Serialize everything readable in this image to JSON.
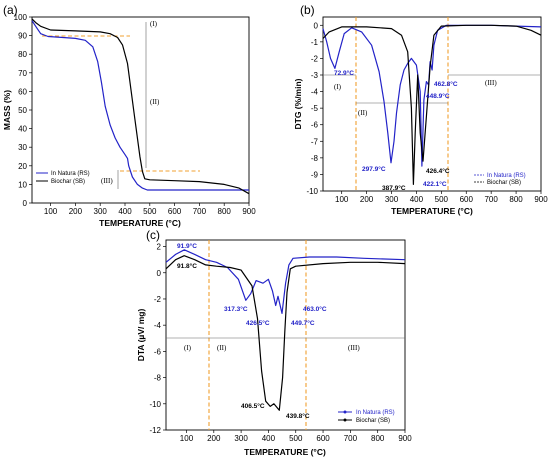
{
  "chart_data": [
    {
      "panel": "(a)",
      "type": "line",
      "xlabel": "TEMPERATURE (°C)",
      "ylabel": "MASS (%)",
      "xlim": [
        25,
        900
      ],
      "ylim": [
        0,
        100
      ],
      "xticks": [
        "100",
        "200",
        "300",
        "400",
        "500",
        "600",
        "700",
        "800",
        "900"
      ],
      "yticks": [
        "0",
        "10",
        "20",
        "30",
        "40",
        "50",
        "60",
        "70",
        "80",
        "90",
        "100"
      ],
      "legend": "bottom-left",
      "series": [
        {
          "name": "In Natura (RS)",
          "color": "#2323c8",
          "points": [
            [
              25,
              98
            ],
            [
              40,
              95
            ],
            [
              60,
              91
            ],
            [
              90,
              89.5
            ],
            [
              150,
              89
            ],
            [
              200,
              88.5
            ],
            [
              240,
              87.5
            ],
            [
              270,
              84
            ],
            [
              290,
              76
            ],
            [
              305,
              65
            ],
            [
              320,
              52
            ],
            [
              340,
              42
            ],
            [
              360,
              35
            ],
            [
              380,
              30
            ],
            [
              400,
              26
            ],
            [
              410,
              24
            ],
            [
              415,
              20
            ],
            [
              430,
              14
            ],
            [
              450,
              10
            ],
            [
              470,
              8
            ],
            [
              490,
              7
            ],
            [
              550,
              7
            ],
            [
              650,
              7
            ],
            [
              750,
              7
            ],
            [
              900,
              7
            ]
          ]
        },
        {
          "name": "Biochar (SB)",
          "color": "#000000",
          "points": [
            [
              25,
              99
            ],
            [
              40,
              97
            ],
            [
              60,
              95
            ],
            [
              100,
              93
            ],
            [
              200,
              92.5
            ],
            [
              300,
              92
            ],
            [
              340,
              91
            ],
            [
              370,
              89
            ],
            [
              390,
              85
            ],
            [
              410,
              75
            ],
            [
              425,
              60
            ],
            [
              440,
              45
            ],
            [
              450,
              35
            ],
            [
              460,
              25
            ],
            [
              470,
              17
            ],
            [
              480,
              13
            ],
            [
              500,
              12.5
            ],
            [
              600,
              12
            ],
            [
              700,
              11.5
            ],
            [
              800,
              10
            ],
            [
              860,
              8
            ],
            [
              900,
              5
            ]
          ]
        }
      ],
      "zones": [
        "(I)",
        "(II)",
        "(III)"
      ]
    },
    {
      "panel": "(b)",
      "type": "line",
      "xlabel": "TEMPERATURE (°C)",
      "ylabel": "DTG (%/min)",
      "xlim": [
        25,
        900
      ],
      "ylim": [
        -10,
        0.5
      ],
      "xticks": [
        "100",
        "200",
        "300",
        "400",
        "500",
        "600",
        "700",
        "800",
        "900"
      ],
      "yticks": [
        "-10",
        "-9",
        "-8",
        "-7",
        "-6",
        "-5",
        "-4",
        "-3",
        "-2",
        "-1",
        "0"
      ],
      "legend": "bottom-right",
      "series": [
        {
          "name": "In Natura (RS)",
          "color": "#2323c8",
          "points": [
            [
              25,
              -0.2
            ],
            [
              40,
              -1.0
            ],
            [
              55,
              -2.0
            ],
            [
              72.9,
              -2.6
            ],
            [
              90,
              -1.6
            ],
            [
              110,
              -0.5
            ],
            [
              140,
              -0.15
            ],
            [
              180,
              -0.4
            ],
            [
              220,
              -1.2
            ],
            [
              250,
              -2.8
            ],
            [
              270,
              -4.6
            ],
            [
              285,
              -6.5
            ],
            [
              297.9,
              -8.3
            ],
            [
              310,
              -7.0
            ],
            [
              320,
              -5.3
            ],
            [
              335,
              -3.6
            ],
            [
              350,
              -2.7
            ],
            [
              365,
              -2.3
            ],
            [
              380,
              -2.0
            ],
            [
              400,
              -2.4
            ],
            [
              415,
              -4.0
            ],
            [
              422.1,
              -8.5
            ],
            [
              430,
              -4.5
            ],
            [
              440,
              -3.4
            ],
            [
              448.9,
              -3.6
            ],
            [
              455,
              -2.2
            ],
            [
              462.8,
              -2.7
            ],
            [
              470,
              -1.2
            ],
            [
              485,
              -0.3
            ],
            [
              520,
              0.0
            ],
            [
              700,
              0.0
            ],
            [
              900,
              -0.1
            ]
          ]
        },
        {
          "name": "Biochar (SB)",
          "color": "#000000",
          "points": [
            [
              25,
              -0.8
            ],
            [
              50,
              -0.4
            ],
            [
              100,
              -0.1
            ],
            [
              200,
              -0.1
            ],
            [
              300,
              -0.2
            ],
            [
              340,
              -0.6
            ],
            [
              365,
              -1.6
            ],
            [
              380,
              -5.0
            ],
            [
              387.9,
              -9.6
            ],
            [
              395,
              -6.5
            ],
            [
              405,
              -3.0
            ],
            [
              415,
              -6.5
            ],
            [
              426.4,
              -8.2
            ],
            [
              440,
              -5.5
            ],
            [
              455,
              -2.5
            ],
            [
              470,
              -0.6
            ],
            [
              500,
              -0.05
            ],
            [
              600,
              0.0
            ],
            [
              700,
              0.0
            ],
            [
              800,
              -0.05
            ],
            [
              860,
              -0.3
            ],
            [
              900,
              -0.6
            ]
          ]
        }
      ],
      "annotations": [
        "72.9°C",
        "297.9°C",
        "387.9°C",
        "422.1°C",
        "426.4°C",
        "448.9°C",
        "462.8°C"
      ],
      "zones": [
        "(I)",
        "(II)",
        "(III)"
      ]
    },
    {
      "panel": "(c)",
      "type": "line",
      "xlabel": "TEMPERATURE (°C)",
      "ylabel": "DTA (µV/ mg)",
      "xlim": [
        25,
        900
      ],
      "ylim": [
        -12,
        2.5
      ],
      "xticks": [
        "100",
        "200",
        "300",
        "400",
        "500",
        "600",
        "700",
        "800",
        "900"
      ],
      "yticks": [
        "-12",
        "-10",
        "-8",
        "-6",
        "-4",
        "-2",
        "0",
        "2"
      ],
      "legend": "bottom-right",
      "series": [
        {
          "name": "In Natura (RS)",
          "color": "#2323c8",
          "points": [
            [
              25,
              0.8
            ],
            [
              60,
              1.4
            ],
            [
              91.9,
              1.75
            ],
            [
              130,
              1.4
            ],
            [
              170,
              1.0
            ],
            [
              210,
              0.8
            ],
            [
              250,
              0.4
            ],
            [
              290,
              -0.5
            ],
            [
              317.3,
              -2.1
            ],
            [
              335,
              -1.6
            ],
            [
              355,
              -0.6
            ],
            [
              380,
              -0.8
            ],
            [
              400,
              -0.5
            ],
            [
              415,
              -1.4
            ],
            [
              426.5,
              -2.5
            ],
            [
              435,
              -1.8
            ],
            [
              449.7,
              -3.1
            ],
            [
              463,
              -0.8
            ],
            [
              475,
              0.6
            ],
            [
              490,
              1.1
            ],
            [
              550,
              1.2
            ],
            [
              650,
              1.2
            ],
            [
              750,
              1.1
            ],
            [
              900,
              1.0
            ]
          ]
        },
        {
          "name": "Biochar (SB)",
          "color": "#000000",
          "points": [
            [
              25,
              0.3
            ],
            [
              60,
              1.0
            ],
            [
              91.8,
              1.3
            ],
            [
              130,
              1.0
            ],
            [
              170,
              0.6
            ],
            [
              210,
              0.5
            ],
            [
              260,
              0.4
            ],
            [
              300,
              0.2
            ],
            [
              340,
              -1.0
            ],
            [
              360,
              -3.5
            ],
            [
              375,
              -7.5
            ],
            [
              390,
              -9.8
            ],
            [
              406.5,
              -10.2
            ],
            [
              420,
              -10.0
            ],
            [
              439.8,
              -10.5
            ],
            [
              452,
              -8.0
            ],
            [
              460,
              -4.5
            ],
            [
              468,
              -1.5
            ],
            [
              480,
              0.3
            ],
            [
              500,
              0.5
            ],
            [
              600,
              0.7
            ],
            [
              700,
              0.8
            ],
            [
              800,
              0.8
            ],
            [
              900,
              0.7
            ]
          ]
        }
      ],
      "annotations": [
        "91.9°C",
        "91.8°C",
        "317.3°C",
        "426.5°C",
        "449.7°C",
        "463.0°C",
        "406.5°C",
        "439.8°C"
      ],
      "zones": [
        "(I)",
        "(II)",
        "(III)"
      ]
    }
  ]
}
